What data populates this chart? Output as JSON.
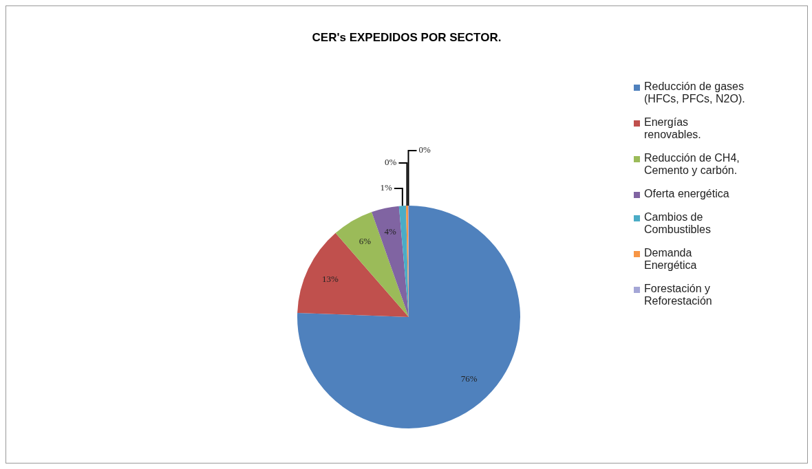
{
  "chart_data": {
    "type": "pie",
    "title": "CER's EXPEDIDOS POR SECTOR.",
    "categories": [
      "Reducción de gases (HFCs, PFCs, N2O).",
      "Energías renovables.",
      "Reducción de CH4, Cemento y carbón.",
      "Oferta energética",
      "Cambios de Combustibles",
      "Demanda Energética",
      "Forestación y Reforestación"
    ],
    "values": [
      75.6,
      13,
      6,
      4,
      1,
      0.3,
      0.1
    ],
    "value_labels": [
      "76%",
      "13%",
      "6%",
      "4%",
      "1%",
      "0%",
      "0%"
    ],
    "colors": [
      "#4f81bd",
      "#c0504d",
      "#9bbb59",
      "#8064a2",
      "#4bacc6",
      "#f79646",
      "#a4a6d6"
    ],
    "legend": "right"
  }
}
